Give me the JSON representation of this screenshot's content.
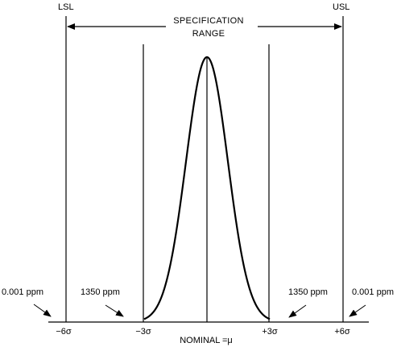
{
  "labels": {
    "lsl": "LSL",
    "usl": "USL",
    "spec_line1": "SPECIFICATION",
    "spec_line2": "RANGE",
    "nominal": "NOMINAL =μ",
    "left_outer_ppm": "0.001 ppm",
    "left_inner_ppm": "1350 ppm",
    "right_inner_ppm": "1350 ppm",
    "right_outer_ppm": "0.001 ppm"
  },
  "axis_ticks": {
    "minus_6_sigma": "−6σ",
    "minus_3_sigma": "−3σ",
    "plus_3_sigma": "+3σ",
    "plus_6_sigma": "+6σ"
  },
  "chart_data": {
    "type": "line",
    "series": [
      {
        "kind": "normal-distribution",
        "mean": 0,
        "std_dev": 1
      }
    ],
    "xlim": [
      -7.5,
      7.5
    ],
    "vertical_lines": [
      -6,
      -3,
      0,
      3,
      6
    ]
  },
  "colors": {
    "ink": "#000000",
    "background": "#ffffff"
  }
}
